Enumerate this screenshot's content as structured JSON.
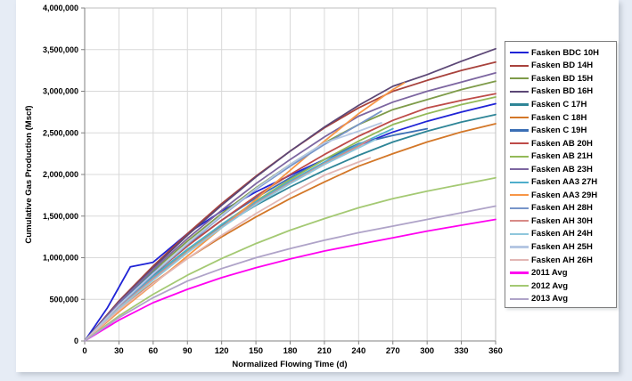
{
  "chart_data": {
    "type": "line",
    "title": "",
    "xlabel": "Normalized Flowing Time (d)",
    "ylabel": "Cumulative Gas Production (Mscf)",
    "xlim": [
      0,
      360
    ],
    "ylim": [
      0,
      4000000
    ],
    "x_ticks": [
      0,
      30,
      60,
      90,
      120,
      150,
      180,
      210,
      240,
      270,
      300,
      330,
      360
    ],
    "x_tick_labels": [
      "0",
      "30",
      "60",
      "90",
      "120",
      "150",
      "180",
      "210",
      "240",
      "270",
      "300",
      "330",
      "360"
    ],
    "y_ticks": [
      0,
      500000,
      1000000,
      1500000,
      2000000,
      2500000,
      3000000,
      3500000,
      4000000
    ],
    "y_tick_labels": [
      "0",
      "500,000",
      "1,000,000",
      "1,500,000",
      "2,000,000",
      "2,500,000",
      "3,000,000",
      "3,500,000",
      "4,000,000"
    ],
    "grid": true,
    "legend_position": "right",
    "colors": {
      "gridline": "#d9d9d9",
      "axis_line": "#808080",
      "plot_border": "#bfbfbf"
    },
    "series": [
      {
        "name": "Fasken BDC 10H",
        "color": "#1f23d6",
        "x": [
          0,
          20,
          40,
          55,
          60,
          90,
          120,
          150,
          180,
          210,
          240,
          270,
          300,
          330,
          360
        ],
        "y": [
          0,
          400000,
          890000,
          930000,
          945000,
          1290000,
          1560000,
          1790000,
          1990000,
          2180000,
          2350000,
          2510000,
          2640000,
          2750000,
          2850000
        ]
      },
      {
        "name": "Fasken BD 14H",
        "color": "#a8423c",
        "x": [
          0,
          30,
          60,
          90,
          120,
          150,
          180,
          210,
          240,
          270,
          300,
          330,
          360
        ],
        "y": [
          0,
          480000,
          900000,
          1290000,
          1650000,
          1980000,
          2280000,
          2560000,
          2800000,
          3000000,
          3130000,
          3250000,
          3350000
        ]
      },
      {
        "name": "Fasken BD 15H",
        "color": "#7e9b49",
        "x": [
          0,
          30,
          60,
          90,
          120,
          150,
          180,
          210,
          240,
          270,
          300,
          330,
          360
        ],
        "y": [
          0,
          450000,
          840000,
          1200000,
          1530000,
          1840000,
          2120000,
          2380000,
          2600000,
          2780000,
          2900000,
          3020000,
          3120000
        ]
      },
      {
        "name": "Fasken BD 16H",
        "color": "#5c4776",
        "x": [
          0,
          30,
          60,
          90,
          120,
          150,
          180,
          210,
          240,
          270,
          300,
          330,
          360
        ],
        "y": [
          0,
          470000,
          880000,
          1270000,
          1630000,
          1970000,
          2280000,
          2570000,
          2830000,
          3060000,
          3200000,
          3360000,
          3510000
        ]
      },
      {
        "name": "Fasken C 17H",
        "color": "#2e8597",
        "x": [
          0,
          30,
          60,
          90,
          120,
          150,
          180,
          210,
          240,
          270,
          300,
          330,
          360
        ],
        "y": [
          0,
          420000,
          780000,
          1100000,
          1380000,
          1630000,
          1850000,
          2050000,
          2230000,
          2390000,
          2520000,
          2630000,
          2720000
        ]
      },
      {
        "name": "Fasken C 18H",
        "color": "#d37728",
        "x": [
          0,
          30,
          60,
          90,
          120,
          150,
          180,
          210,
          240,
          270,
          300,
          330,
          360
        ],
        "y": [
          0,
          380000,
          700000,
          990000,
          1250000,
          1490000,
          1710000,
          1910000,
          2100000,
          2250000,
          2390000,
          2510000,
          2610000
        ]
      },
      {
        "name": "Fasken C 19H",
        "color": "#3b6fb5",
        "x": [
          0,
          30,
          60,
          90,
          120,
          150,
          180,
          210,
          240,
          270,
          300
        ],
        "y": [
          0,
          440000,
          820000,
          1150000,
          1450000,
          1720000,
          1960000,
          2180000,
          2370000,
          2470000,
          2550000
        ]
      },
      {
        "name": "Fasken AB 20H",
        "color": "#be4b48",
        "x": [
          0,
          30,
          60,
          90,
          120,
          150,
          180,
          210,
          240,
          270,
          300,
          330,
          360
        ],
        "y": [
          0,
          430000,
          800000,
          1140000,
          1450000,
          1740000,
          2000000,
          2240000,
          2460000,
          2650000,
          2800000,
          2890000,
          2970000
        ]
      },
      {
        "name": "Fasken AB 21H",
        "color": "#93b958",
        "x": [
          0,
          30,
          60,
          90,
          120,
          150,
          180,
          210,
          240,
          270,
          300,
          330,
          360
        ],
        "y": [
          0,
          400000,
          760000,
          1090000,
          1400000,
          1680000,
          1940000,
          2180000,
          2400000,
          2600000,
          2730000,
          2840000,
          2930000
        ]
      },
      {
        "name": "Fasken AB 23H",
        "color": "#7c65a0",
        "x": [
          0,
          30,
          60,
          90,
          120,
          150,
          180,
          210,
          240,
          270,
          300,
          330,
          360
        ],
        "y": [
          0,
          460000,
          860000,
          1230000,
          1570000,
          1890000,
          2180000,
          2450000,
          2700000,
          2870000,
          3000000,
          3110000,
          3220000
        ]
      },
      {
        "name": "Fasken AA3 27H",
        "color": "#4faecb",
        "x": [
          0,
          30,
          60,
          90,
          120,
          150,
          180,
          210,
          240,
          270
        ],
        "y": [
          0,
          410000,
          770000,
          1100000,
          1400000,
          1670000,
          1920000,
          2150000,
          2360000,
          2550000
        ]
      },
      {
        "name": "Fasken AA3 29H",
        "color": "#f79646",
        "x": [
          0,
          30,
          60,
          90,
          120,
          150,
          180,
          210,
          240,
          270,
          280
        ],
        "y": [
          0,
          350000,
          680000,
          1020000,
          1360000,
          1700000,
          2050000,
          2400000,
          2730000,
          3020000,
          3100000
        ]
      },
      {
        "name": "Fasken AH 28H",
        "color": "#7795c9",
        "x": [
          0,
          30,
          60,
          90,
          120,
          150,
          180,
          210,
          240,
          260
        ],
        "y": [
          0,
          420000,
          800000,
          1160000,
          1500000,
          1820000,
          2100000,
          2360000,
          2600000,
          2760000
        ]
      },
      {
        "name": "Fasken AH 30H",
        "color": "#d88a87",
        "x": [
          0,
          30,
          60,
          90,
          120,
          150,
          180,
          210,
          240,
          250
        ],
        "y": [
          0,
          400000,
          750000,
          1070000,
          1370000,
          1650000,
          1900000,
          2130000,
          2340000,
          2420000
        ]
      },
      {
        "name": "Fasken AH 24H",
        "color": "#8fc7dc",
        "x": [
          0,
          30,
          60,
          90,
          120,
          150,
          180,
          210,
          240,
          255
        ],
        "y": [
          0,
          390000,
          730000,
          1060000,
          1360000,
          1640000,
          1890000,
          2120000,
          2320000,
          2420000
        ]
      },
      {
        "name": "Fasken AH 25H",
        "color": "#b5c7e3",
        "x": [
          0,
          30,
          60,
          90,
          120,
          150,
          180,
          210,
          240,
          260
        ],
        "y": [
          0,
          430000,
          810000,
          1170000,
          1510000,
          1830000,
          2120000,
          2380000,
          2520000,
          2620000
        ]
      },
      {
        "name": "Fasken AH 26H",
        "color": "#e2b6b4",
        "x": [
          0,
          30,
          60,
          90,
          120,
          150,
          180,
          210,
          240,
          250
        ],
        "y": [
          0,
          370000,
          690000,
          990000,
          1270000,
          1530000,
          1770000,
          1990000,
          2150000,
          2200000
        ]
      },
      {
        "name": "2011 Avg",
        "color": "#ff00f0",
        "x": [
          0,
          30,
          60,
          90,
          120,
          150,
          180,
          210,
          240,
          270,
          300,
          330,
          360
        ],
        "y": [
          0,
          250000,
          460000,
          620000,
          760000,
          880000,
          985000,
          1080000,
          1160000,
          1240000,
          1320000,
          1390000,
          1460000
        ]
      },
      {
        "name": "2012 Avg",
        "color": "#a4c973",
        "x": [
          0,
          30,
          60,
          90,
          120,
          150,
          180,
          210,
          240,
          270,
          300,
          330,
          360
        ],
        "y": [
          0,
          300000,
          560000,
          790000,
          990000,
          1170000,
          1330000,
          1470000,
          1600000,
          1710000,
          1800000,
          1880000,
          1960000
        ]
      },
      {
        "name": "2013 Avg",
        "color": "#afa3c8",
        "x": [
          0,
          30,
          60,
          90,
          120,
          150,
          180,
          210,
          240,
          270,
          300,
          330,
          360
        ],
        "y": [
          0,
          280000,
          520000,
          720000,
          870000,
          1000000,
          1110000,
          1210000,
          1300000,
          1380000,
          1460000,
          1540000,
          1620000
        ]
      }
    ]
  }
}
